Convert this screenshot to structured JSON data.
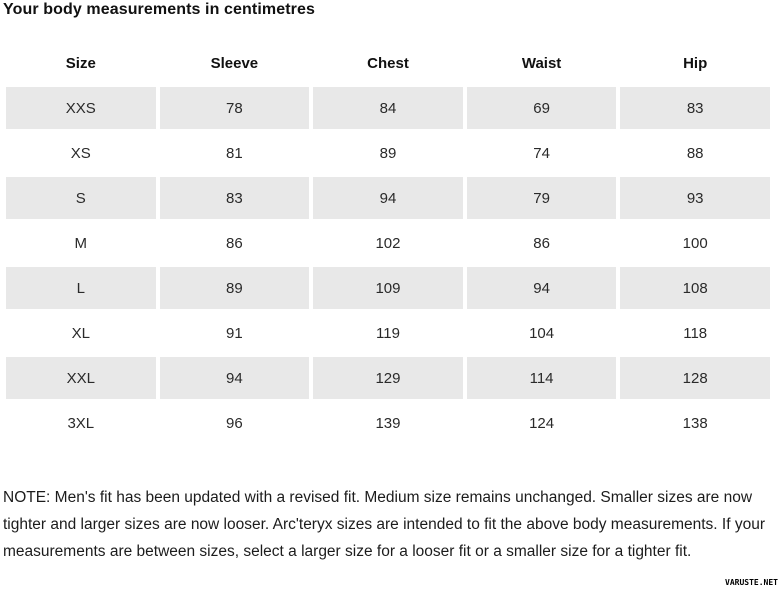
{
  "chart_data": {
    "type": "table",
    "title": "Your body measurements in centimetres",
    "columns": [
      "Size",
      "Sleeve",
      "Chest",
      "Waist",
      "Hip"
    ],
    "rows": [
      [
        "XXS",
        78,
        84,
        69,
        83
      ],
      [
        "XS",
        81,
        89,
        74,
        88
      ],
      [
        "S",
        83,
        94,
        79,
        93
      ],
      [
        "M",
        86,
        102,
        86,
        100
      ],
      [
        "L",
        89,
        109,
        94,
        108
      ],
      [
        "XL",
        91,
        119,
        104,
        118
      ],
      [
        "XXL",
        94,
        129,
        114,
        128
      ],
      [
        "3XL",
        96,
        139,
        124,
        138
      ]
    ],
    "layout": {
      "striped_rows": "XXS,S,L,XXL",
      "stripe_color": "#e8e8e8"
    }
  },
  "note": "NOTE: Men's fit has been updated with a revised fit. Medium size remains unchanged. Smaller sizes are now tighter and larger sizes are now looser. Arc'teryx sizes are intended to fit the above body measurements. If your measurements are between sizes, select a larger size for a looser fit or a smaller size for a tighter fit.",
  "watermark": "VARUSTE.NET",
  "colors": {
    "stripe": "#e8e8e8",
    "text": "#1c1c1c",
    "title": "#111111"
  }
}
